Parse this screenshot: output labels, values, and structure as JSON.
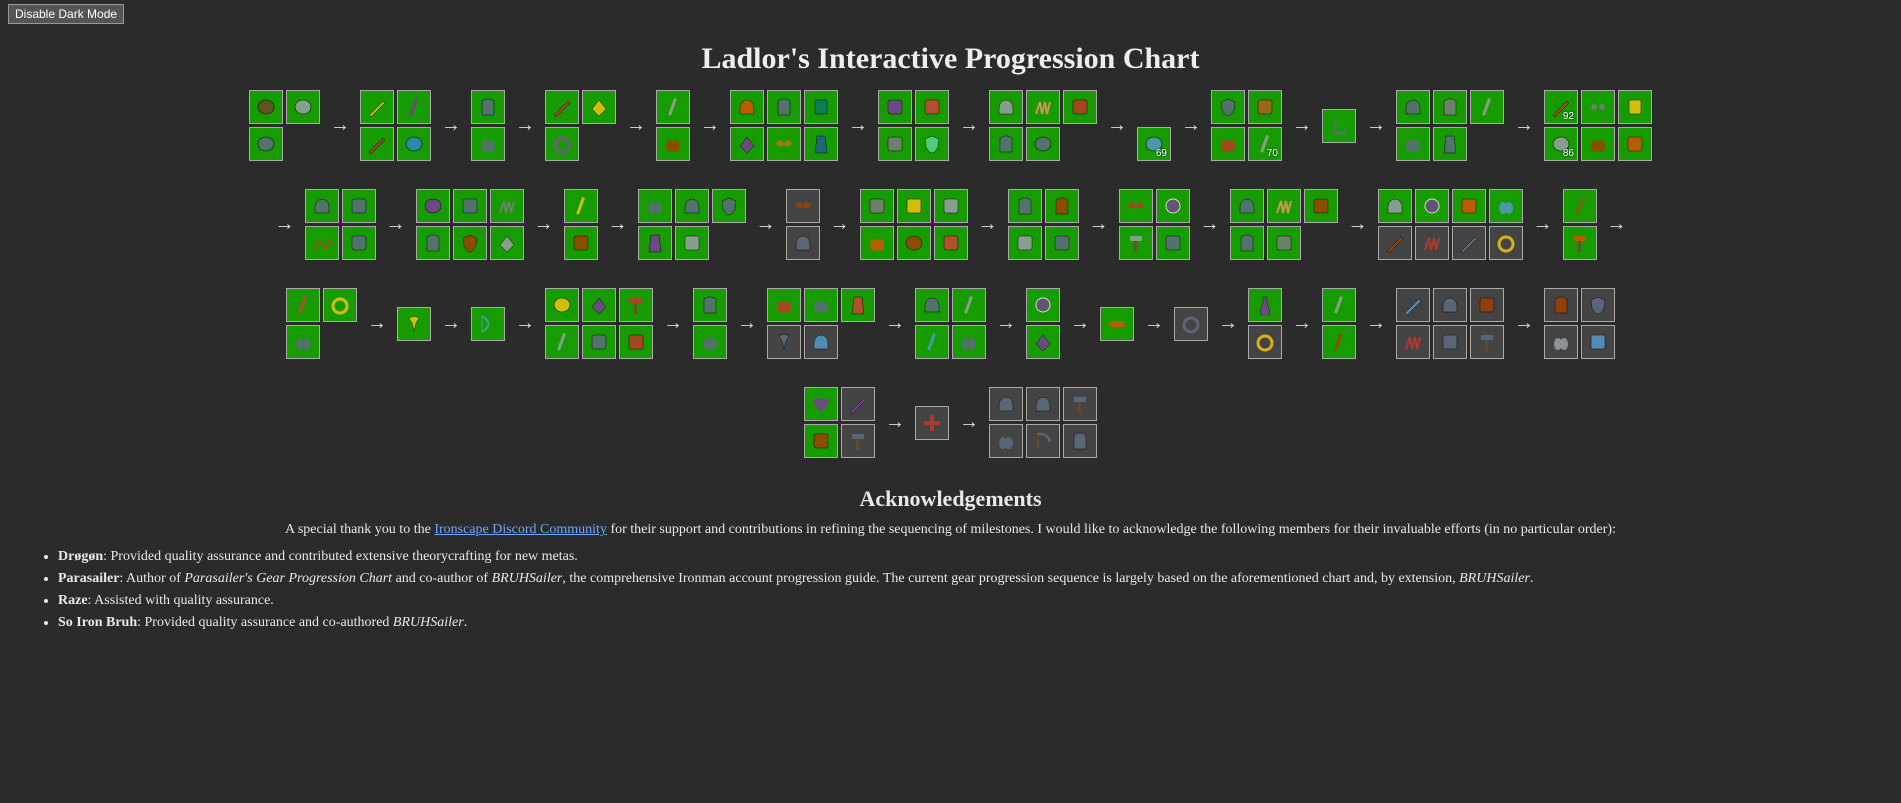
{
  "dark_mode_button": "Disable Dark Mode",
  "title": "Ladlor's Interactive Progression Chart",
  "glyph_palette": [
    "#6b4a2a",
    "#9aa0a6",
    "#d4af37",
    "#7a3d9c",
    "#b03a2e",
    "#2e86c1",
    "#1e8449",
    "#c0392b",
    "#f1c40f",
    "#5d6d7e",
    "#884ea0",
    "#a04000",
    "#d35400",
    "#117864",
    "#7d3c98",
    "#b9770e",
    "#1f618d",
    "#cb4335",
    "#7b7d7d",
    "#58d68d",
    "#e59866",
    "#5499c7",
    "#af601a",
    "#48c9b0"
  ],
  "arrow_glyph": "→",
  "rows": [
    [
      {
        "leading_arrow": false,
        "cols": 2,
        "cells": [
          {
            "c": 0
          },
          {
            "c": 1,
            "shape": "round"
          },
          {
            "c": 9
          },
          {
            "t": "empty"
          }
        ]
      },
      {
        "cols": 2,
        "cells": [
          {
            "c": 2,
            "shape": "diag"
          },
          {
            "c": 3,
            "shape": "stick"
          },
          {
            "c": 4,
            "shape": "sword"
          },
          {
            "c": 5,
            "shape": "round"
          }
        ]
      },
      {
        "cols": 1,
        "cells": [
          {
            "c": 9,
            "shape": "shirt"
          },
          {
            "c": 9,
            "shape": "pair"
          }
        ]
      },
      {
        "cols": 2,
        "cells": [
          {
            "c": 7,
            "shape": "sword"
          },
          {
            "c": 8,
            "shape": "tri"
          },
          {
            "c": 10,
            "shape": "ring"
          },
          {
            "t": "empty"
          }
        ]
      },
      {
        "cols": 1,
        "cells": [
          {
            "c": 1,
            "shape": "stick"
          },
          {
            "c": 11,
            "shape": "glove"
          }
        ]
      },
      {
        "cols": 3,
        "cells": [
          {
            "c": 12,
            "shape": "helm"
          },
          {
            "c": 9,
            "shape": "shirt"
          },
          {
            "c": 13,
            "shape": "scroll"
          },
          {
            "c": 14,
            "shape": "gem"
          },
          {
            "c": 15,
            "shape": "wing"
          },
          {
            "c": 16,
            "shape": "cape"
          }
        ]
      },
      {
        "cols": 2,
        "cells": [
          {
            "c": 3,
            "shape": "crown"
          },
          {
            "c": 17,
            "shape": "cup"
          },
          {
            "c": 18,
            "shape": "chest"
          },
          {
            "c": 19,
            "shape": "shield"
          }
        ]
      },
      {
        "cols": 3,
        "cells": [
          {
            "c": 1,
            "shape": "helm"
          },
          {
            "c": 20,
            "shape": "claw"
          },
          {
            "c": 7,
            "shape": "doll"
          },
          {
            "c": 9,
            "shape": "shirt"
          },
          {
            "c": 9,
            "shape": "round"
          },
          {
            "t": "empty"
          }
        ]
      },
      {
        "cols": 1,
        "cells": [
          {
            "t": "empty"
          },
          {
            "c": 21,
            "shape": "round",
            "text": "69"
          }
        ]
      },
      {
        "cols": 2,
        "cells": [
          {
            "c": 9,
            "shape": "shield"
          },
          {
            "c": 22,
            "shape": "leaf"
          },
          {
            "c": 7,
            "shape": "boot"
          },
          {
            "c": 1,
            "shape": "stick",
            "text": "70"
          }
        ]
      },
      {
        "cols": 1,
        "cells": [
          {
            "c": 9,
            "shape": "hook"
          }
        ]
      },
      {
        "cols": 3,
        "cells": [
          {
            "c": 9,
            "shape": "helm"
          },
          {
            "c": 18,
            "shape": "shirt"
          },
          {
            "c": 1,
            "shape": "stick"
          },
          {
            "c": 9,
            "shape": "glove"
          },
          {
            "c": 9,
            "shape": "robe"
          },
          {
            "t": "empty"
          }
        ]
      },
      {
        "cols": 3,
        "cells": [
          {
            "c": 7,
            "shape": "diag",
            "text": "92"
          },
          {
            "c": 18,
            "shape": "eyes"
          },
          {
            "c": 8,
            "shape": "book"
          },
          {
            "c": 1,
            "shape": "round",
            "text": "86"
          },
          {
            "c": 11,
            "shape": "boot"
          },
          {
            "c": 12,
            "shape": "pack"
          }
        ]
      }
    ],
    [
      {
        "leading_arrow": true,
        "cols": 2,
        "cells": [
          {
            "c": 9,
            "shape": "helm"
          },
          {
            "c": 9,
            "shape": "spike"
          },
          {
            "c": 7,
            "shape": "whip"
          },
          {
            "c": 9,
            "shape": "totem"
          }
        ]
      },
      {
        "cols": 3,
        "cells": [
          {
            "c": 3,
            "shape": "round"
          },
          {
            "c": 9,
            "shape": "disc"
          },
          {
            "c": 18,
            "shape": "claw"
          },
          {
            "c": 9,
            "shape": "shirt"
          },
          {
            "c": 11,
            "shape": "shield"
          },
          {
            "c": 1,
            "shape": "tri"
          }
        ]
      },
      {
        "cols": 1,
        "cells": [
          {
            "c": 8,
            "shape": "staff"
          },
          {
            "c": 11,
            "shape": "pouch"
          }
        ]
      },
      {
        "cols": 3,
        "cells": [
          {
            "c": 9,
            "shape": "glove"
          },
          {
            "c": 9,
            "shape": "helm"
          },
          {
            "c": 9,
            "shape": "shield"
          },
          {
            "c": 3,
            "shape": "cape"
          },
          {
            "c": 1,
            "shape": "hat"
          },
          {
            "t": "empty"
          }
        ]
      },
      {
        "cols": 1,
        "cells": [
          {
            "c": 11,
            "shape": "wing",
            "dark": true
          },
          {
            "c": 9,
            "shape": "helm",
            "dark": true
          }
        ]
      },
      {
        "cols": 3,
        "cells": [
          {
            "c": 18,
            "shape": "skull"
          },
          {
            "c": 8,
            "shape": "chest"
          },
          {
            "c": 1,
            "shape": "coil"
          },
          {
            "c": 12,
            "shape": "boot"
          },
          {
            "c": 11,
            "shape": "round"
          },
          {
            "c": 17,
            "shape": "cup"
          }
        ]
      },
      {
        "cols": 2,
        "cells": [
          {
            "c": 9,
            "shape": "shirt"
          },
          {
            "c": 11,
            "shape": "shirt"
          },
          {
            "c": 1,
            "shape": "hat"
          },
          {
            "c": 9,
            "shape": "legs"
          }
        ]
      },
      {
        "cols": 2,
        "cells": [
          {
            "c": 7,
            "shape": "wing"
          },
          {
            "c": 3,
            "shape": "orb"
          },
          {
            "c": 1,
            "shape": "axe"
          },
          {
            "c": 9,
            "shape": "stump"
          }
        ]
      },
      {
        "cols": 3,
        "cells": [
          {
            "c": 9,
            "shape": "helm"
          },
          {
            "c": 20,
            "shape": "claw"
          },
          {
            "c": 11,
            "shape": "pelt"
          },
          {
            "c": 9,
            "shape": "shirt"
          },
          {
            "c": 18,
            "shape": "doll"
          },
          {
            "t": "empty"
          }
        ]
      },
      {
        "cols": 4,
        "cells": [
          {
            "c": 1,
            "shape": "helm"
          },
          {
            "c": 3,
            "shape": "orb"
          },
          {
            "c": 12,
            "shape": "pouch"
          },
          {
            "c": 21,
            "shape": "glove"
          },
          {
            "c": 11,
            "shape": "sword",
            "dark": true
          },
          {
            "c": 7,
            "shape": "claw",
            "dark": true
          },
          {
            "c": 9,
            "shape": "diag",
            "dark": true
          },
          {
            "c": 8,
            "shape": "ring",
            "dark": true
          }
        ]
      },
      {
        "trailing_arrow": true,
        "cols": 1,
        "cells": [
          {
            "c": 7,
            "shape": "spear"
          },
          {
            "c": 12,
            "shape": "pick"
          }
        ]
      }
    ],
    [
      {
        "leading_arrow": false,
        "cols": 2,
        "cells": [
          {
            "c": 17,
            "shape": "stick"
          },
          {
            "c": 8,
            "shape": "ring"
          },
          {
            "c": 9,
            "shape": "glove"
          },
          {
            "t": "empty"
          }
        ]
      },
      {
        "cols": 1,
        "cells": [
          {
            "c": 8,
            "shape": "amulet"
          }
        ]
      },
      {
        "cols": 1,
        "cells": [
          {
            "c": 21,
            "shape": "bow"
          }
        ]
      },
      {
        "cols": 3,
        "cells": [
          {
            "c": 8,
            "shape": "round"
          },
          {
            "c": 14,
            "shape": "gem"
          },
          {
            "c": 7,
            "shape": "axe"
          },
          {
            "c": 1,
            "shape": "staff"
          },
          {
            "c": 9,
            "shape": "horn"
          },
          {
            "c": 7,
            "shape": "kilt"
          }
        ]
      },
      {
        "cols": 1,
        "cells": [
          {
            "c": 9,
            "shape": "shirt"
          },
          {
            "c": 9,
            "shape": "glove"
          }
        ]
      },
      {
        "cols": 3,
        "cells": [
          {
            "c": 7,
            "shape": "boot"
          },
          {
            "c": 9,
            "shape": "boot"
          },
          {
            "c": 17,
            "shape": "robe"
          },
          {
            "c": 9,
            "shape": "amulet",
            "dark": true
          },
          {
            "c": 21,
            "shape": "helm",
            "dark": true
          },
          {
            "t": "empty"
          }
        ]
      },
      {
        "cols": 2,
        "cells": [
          {
            "c": 9,
            "shape": "helm"
          },
          {
            "c": 1,
            "shape": "stick"
          },
          {
            "c": 21,
            "shape": "staff"
          },
          {
            "c": 9,
            "shape": "glove"
          }
        ]
      },
      {
        "cols": 1,
        "cells": [
          {
            "c": 14,
            "shape": "orb"
          },
          {
            "c": 3,
            "shape": "gem"
          }
        ]
      },
      {
        "cols": 1,
        "cells": [
          {
            "c": 12,
            "shape": "log"
          }
        ]
      },
      {
        "cols": 1,
        "cells": [
          {
            "c": 9,
            "shape": "ring",
            "dark": true
          }
        ]
      },
      {
        "cols": 1,
        "cells": [
          {
            "c": 14,
            "shape": "vial"
          },
          {
            "c": 8,
            "shape": "ring",
            "dark": true
          }
        ]
      },
      {
        "cols": 1,
        "cells": [
          {
            "c": 1,
            "shape": "staff"
          },
          {
            "c": 11,
            "shape": "stick"
          }
        ]
      },
      {
        "cols": 3,
        "cells": [
          {
            "c": 21,
            "shape": "sword",
            "dark": true
          },
          {
            "c": 9,
            "shape": "helm",
            "dark": true
          },
          {
            "c": 11,
            "shape": "pelt",
            "dark": true
          },
          {
            "c": 7,
            "shape": "claw",
            "dark": true
          },
          {
            "c": 9,
            "shape": "mask",
            "dark": true
          },
          {
            "c": 9,
            "shape": "hammer",
            "dark": true
          }
        ]
      },
      {
        "cols": 2,
        "cells": [
          {
            "c": 11,
            "shape": "shirt",
            "dark": true
          },
          {
            "c": 9,
            "shape": "shield",
            "dark": true
          },
          {
            "c": 1,
            "shape": "glove",
            "dark": true
          },
          {
            "c": 21,
            "shape": "wrench",
            "dark": true
          }
        ]
      }
    ],
    [
      {
        "leading_arrow": false,
        "cols": 2,
        "cells": [
          {
            "c": 14,
            "shape": "heart"
          },
          {
            "c": 3,
            "shape": "diag",
            "dark": true
          },
          {
            "c": 11,
            "shape": "pouch"
          },
          {
            "c": 9,
            "shape": "axe",
            "dark": true
          }
        ]
      },
      {
        "cols": 1,
        "cells": [
          {
            "c": 7,
            "shape": "cross",
            "dark": true
          }
        ]
      },
      {
        "cols": 3,
        "cells": [
          {
            "c": 9,
            "shape": "helm",
            "dark": true
          },
          {
            "c": 9,
            "shape": "helm",
            "dark": true
          },
          {
            "c": 9,
            "shape": "pick",
            "dark": true
          },
          {
            "c": 9,
            "shape": "glove",
            "dark": true
          },
          {
            "c": 9,
            "shape": "scythe",
            "dark": true
          },
          {
            "c": 9,
            "shape": "shirt",
            "dark": true
          }
        ]
      }
    ]
  ],
  "ack_title": "Acknowledgements",
  "ack_intro_pre": "A special thank you to the ",
  "ack_intro_link": "Ironscape Discord Community",
  "ack_intro_post": " for their support and contributions in refining the sequencing of milestones. I would like to acknowledge the following members for their invaluable efforts (in no particular order):",
  "ack_list": [
    {
      "name": "Drøgøn",
      "text": ": Provided quality assurance and contributed extensive theorycrafting for new metas."
    },
    {
      "name": "Parasailer",
      "text": ": Author of ",
      "i1": "Parasailer's Gear Progression Chart",
      "mid": " and co-author of ",
      "i2": "BRUHSailer",
      "text2": ", the comprehensive Ironman account progression guide. The current gear progression sequence is largely based on the aforementioned chart and, by extension, ",
      "i3": "BRUHSailer",
      "text3": "."
    },
    {
      "name": "Raze",
      "text": ": Assisted with quality assurance."
    },
    {
      "name": "So Iron Bruh",
      "text": ": Provided quality assurance and co-authored ",
      "i1": "BRUHSailer",
      "text2": "."
    }
  ]
}
